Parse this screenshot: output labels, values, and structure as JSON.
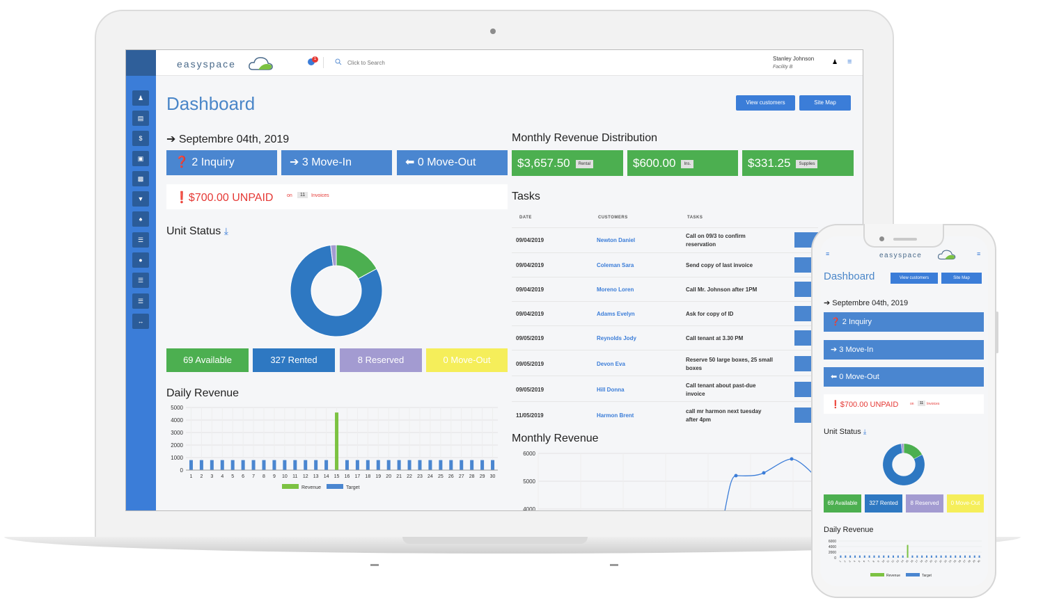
{
  "brand": {
    "name": "easyspace"
  },
  "topbar": {
    "notification_count": "1",
    "search_placeholder": "Click to Search",
    "user_name": "Stanley Johnson",
    "user_facility": "Facility B"
  },
  "sidebar": {
    "items": [
      "users-icon",
      "document-icon",
      "dollar-icon",
      "box-icon",
      "inbox-icon",
      "cart-icon",
      "group-icon",
      "table-icon",
      "location-icon",
      "list-icon",
      "list2-icon",
      "arrows-icon"
    ]
  },
  "page": {
    "title": "Dashboard",
    "view_customers": "View customers",
    "site_map": "Site Map",
    "date": "Septembre 04th, 2019",
    "inquiry": "2 Inquiry",
    "move_in": "3 Move-In",
    "move_out": "0 Move-Out",
    "unpaid": "$700.00 UNPAID",
    "unpaid_on": "on",
    "unpaid_count": "11",
    "unpaid_invoices": "Invoices"
  },
  "unit_status": {
    "title": "Unit Status",
    "available": "69 Available",
    "rented": "327 Rented",
    "reserved": "8 Reserved",
    "move_out": "0 Move-Out",
    "colors": {
      "available": "#4caf50",
      "rented": "#2e78c2",
      "reserved": "#a39bd1",
      "move_out": "#f5ee5a"
    }
  },
  "monthly_revenue_distribution": {
    "title": "Monthly Revenue Distribution",
    "cards": [
      {
        "amount": "$3,657.50",
        "tag": "Rental"
      },
      {
        "amount": "$600.00",
        "tag": "Ins."
      },
      {
        "amount": "$331.25",
        "tag": "Supplies"
      }
    ]
  },
  "tasks": {
    "title": "Tasks",
    "headers": [
      "DATE",
      "CUSTOMERS",
      "TASKS"
    ],
    "rows": [
      {
        "date": "09/04/2019",
        "customer": "Newton Daniel",
        "task": "Call on 09/3 to confirm reservation"
      },
      {
        "date": "09/04/2019",
        "customer": "Coleman Sara",
        "task": "Send copy of last invoice"
      },
      {
        "date": "09/04/2019",
        "customer": "Moreno Loren",
        "task": "Call Mr. Johnson after 1PM"
      },
      {
        "date": "09/04/2019",
        "customer": "Adams Evelyn",
        "task": "Ask for copy of ID"
      },
      {
        "date": "09/05/2019",
        "customer": "Reynolds Jody",
        "task": "Call tenant at 3.30 PM"
      },
      {
        "date": "09/05/2019",
        "customer": "Devon Eva",
        "task": "Reserve 50 large boxes, 25 small boxes"
      },
      {
        "date": "09/05/2019",
        "customer": "Hill Donna",
        "task": "Call tenant about past-due invoice"
      },
      {
        "date": "11/05/2019",
        "customer": "Harmon Brent",
        "task": "call mr harmon next tuesday after 4pm"
      }
    ]
  },
  "daily_revenue": {
    "title": "Daily Revenue"
  },
  "monthly_revenue": {
    "title": "Monthly Revenue"
  },
  "chart_data": [
    {
      "type": "pie",
      "categories": [
        "Available",
        "Rented",
        "Reserved",
        "Move-Out"
      ],
      "values": [
        69,
        327,
        8,
        0
      ],
      "colors": [
        "#4caf50",
        "#2e78c2",
        "#a39bd1",
        "#f5ee5a"
      ]
    },
    {
      "type": "bar",
      "title": "Daily Revenue",
      "categories": [
        "1",
        "2",
        "3",
        "4",
        "5",
        "6",
        "7",
        "8",
        "9",
        "10",
        "11",
        "12",
        "13",
        "14",
        "15",
        "16",
        "17",
        "18",
        "19",
        "20",
        "21",
        "22",
        "23",
        "24",
        "25",
        "26",
        "27",
        "28",
        "29",
        "30"
      ],
      "series": [
        {
          "name": "Revenue",
          "values": [
            0,
            0,
            0,
            0,
            0,
            0,
            0,
            0,
            0,
            0,
            0,
            0,
            0,
            0,
            4600,
            0,
            0,
            0,
            0,
            0,
            0,
            0,
            0,
            0,
            0,
            0,
            0,
            0,
            0,
            0
          ],
          "color": "#7cc242"
        },
        {
          "name": "Target",
          "values": [
            800,
            800,
            800,
            800,
            800,
            800,
            800,
            800,
            800,
            800,
            800,
            800,
            800,
            800,
            800,
            800,
            800,
            800,
            800,
            800,
            800,
            800,
            800,
            800,
            800,
            800,
            800,
            800,
            800,
            800
          ],
          "color": "#4a86d0"
        }
      ],
      "yticks": [
        0,
        1000,
        2000,
        3000,
        4000,
        5000
      ],
      "ylim": [
        0,
        5000
      ],
      "legend": "bottom"
    },
    {
      "type": "line",
      "title": "Monthly Revenue",
      "x": [
        1,
        2,
        3
      ],
      "values": [
        5200,
        5300,
        5800
      ],
      "yticks": [
        4000,
        5000,
        6000
      ],
      "ylim": [
        3800,
        6000
      ]
    },
    {
      "type": "bar",
      "title": "Daily Revenue (mobile)",
      "categories": [
        "1",
        "2",
        "3",
        "4",
        "5",
        "6",
        "7",
        "8",
        "9",
        "10",
        "11",
        "12",
        "13",
        "14",
        "15",
        "16",
        "17",
        "18",
        "19",
        "20",
        "21",
        "22",
        "23",
        "24",
        "25",
        "26",
        "27",
        "28",
        "29",
        "30"
      ],
      "series": [
        {
          "name": "Revenue",
          "values": [
            0,
            0,
            0,
            0,
            0,
            0,
            0,
            0,
            0,
            0,
            0,
            0,
            0,
            0,
            4600,
            0,
            0,
            0,
            0,
            0,
            0,
            0,
            0,
            0,
            0,
            0,
            0,
            0,
            0,
            0
          ]
        },
        {
          "name": "Target",
          "values": [
            800,
            800,
            800,
            800,
            800,
            800,
            800,
            800,
            800,
            800,
            800,
            800,
            800,
            800,
            800,
            800,
            800,
            800,
            800,
            800,
            800,
            800,
            800,
            800,
            800,
            800,
            800,
            800,
            800,
            800
          ]
        }
      ],
      "yticks": [
        0,
        2000,
        4000,
        6000
      ],
      "ylim": [
        0,
        6000
      ]
    }
  ]
}
